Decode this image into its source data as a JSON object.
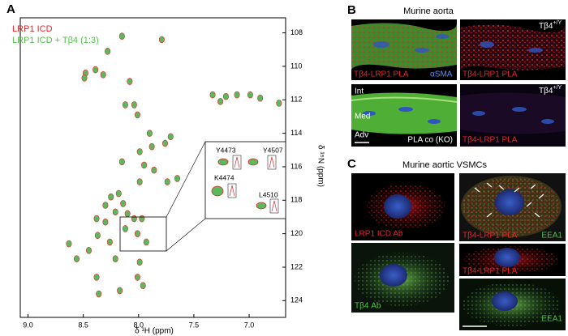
{
  "panel_a": {
    "label": "A",
    "legend": [
      {
        "name": "LRP1 ICD",
        "color": "#e0282a"
      },
      {
        "name": "LRP1 ICD + Tβ4 (1:3)",
        "color": "#5cb85c"
      }
    ],
    "x_axis_label": "δ ¹H (ppm)",
    "y_axis_label": "δ ¹⁵N (ppm)",
    "xlim": [
      9.07,
      6.67
    ],
    "xticks": [
      {
        "value": 9,
        "label": "9.0"
      },
      {
        "value": 8.5,
        "label": "8.5"
      },
      {
        "value": 8,
        "label": "8.0"
      },
      {
        "value": 7.5,
        "label": "7.5"
      },
      {
        "value": 7,
        "label": "7.0"
      }
    ],
    "ylim": [
      107.1,
      125
    ],
    "yticks": [
      108,
      110,
      112,
      114,
      116,
      118,
      120,
      122,
      124
    ],
    "peaks": {
      "x": [
        8.15,
        7.79,
        8.28,
        8.39,
        8.48,
        8.49,
        8.32,
        8.08,
        8.12,
        8.04,
        8.01,
        7.33,
        7.26,
        7.21,
        7.11,
        6.99,
        6.9,
        6.73,
        7.9,
        7.71,
        7.88,
        7.76,
        7.99,
        8.15,
        7.95,
        7.86,
        7.74,
        7.65,
        7.99,
        8.18,
        8.3,
        8.21,
        8.1,
        8.04,
        7.97,
        8.3,
        8.12,
        8.01,
        7.93,
        8.26,
        8.37,
        8.45,
        8.63,
        8.56,
        8.21,
        7.99,
        8.38,
        8.01,
        8.36,
        8.17,
        7.96,
        8.38,
        8.25,
        8.14
      ],
      "y": [
        108.2,
        108.4,
        109.1,
        110.2,
        110.4,
        110.7,
        110.5,
        110.9,
        112.3,
        112.3,
        112.9,
        111.7,
        112.1,
        111.8,
        111.7,
        111.7,
        111.9,
        112.2,
        114.0,
        114.2,
        114.8,
        114.6,
        115.1,
        115.7,
        115.9,
        116.2,
        116.9,
        116.7,
        116.9,
        117.6,
        118.3,
        118.7,
        118.8,
        119.1,
        119.1,
        119.3,
        119.7,
        120.0,
        120.5,
        120.5,
        120.1,
        121.0,
        120.6,
        121.5,
        121.5,
        121.7,
        122.6,
        122.6,
        123.6,
        123.4,
        123.1,
        119.1,
        117.8,
        118.2
      ]
    },
    "inset_labels": [
      "Y4473",
      "Y4507",
      "K4474",
      "L4510"
    ]
  },
  "panel_b": {
    "label": "B",
    "title": "Murine aorta",
    "genotype": {
      "base": "Tβ4",
      "sup": "+/Y"
    },
    "top_left": [
      "Tβ4-LRP1 PLA",
      "αSMA"
    ],
    "top_right": "Tβ4-LRP1 PLA",
    "layers": [
      "Int",
      "Med",
      "Adv"
    ],
    "bottom_left": "PLA co (KO)",
    "bottom_right": "Tβ4-LRP1 PLA"
  },
  "panel_c": {
    "label": "C",
    "title": "Murine aortic VSMCs",
    "left": [
      "LRP1 ICD Ab",
      "Tβ4 Ab"
    ],
    "right": [
      [
        "Tβ4-LRP1 PLA",
        "EEA1"
      ],
      "Tβ4-LRP1 PLA",
      "EEA1"
    ]
  }
}
